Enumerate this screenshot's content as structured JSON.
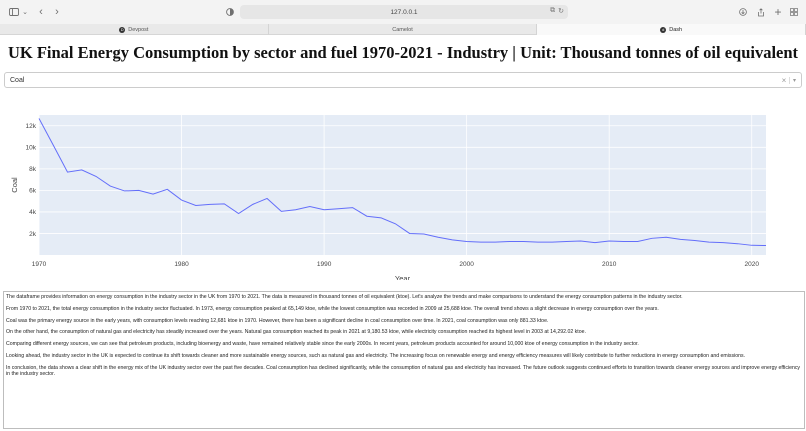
{
  "browser": {
    "url": "127.0.0.1",
    "tabs": [
      {
        "label": "Devpost",
        "active": false
      },
      {
        "label": "Camelot",
        "active": false
      },
      {
        "label": "Dash",
        "active": true
      }
    ]
  },
  "page": {
    "title": "UK Final Energy Consumption by sector and fuel 1970-2021 - Industry | Unit: Thousand tonnes of oil equivalent"
  },
  "dropdown": {
    "selected": "Coal",
    "clear_icon": "×",
    "arrow_icon": "▾"
  },
  "chart_data": {
    "type": "line",
    "xlabel": "Year",
    "ylabel": "Coal",
    "xlim": [
      1970,
      2021
    ],
    "ylim": [
      0,
      13000
    ],
    "x_ticks": [
      1970,
      1980,
      1990,
      2000,
      2010,
      2020
    ],
    "y_ticks": [
      2000,
      4000,
      6000,
      8000,
      10000,
      12000
    ],
    "y_tick_labels": [
      "2k",
      "4k",
      "6k",
      "8k",
      "10k",
      "12k"
    ],
    "grid": true,
    "line_color": "#636efa",
    "plot_bg": "#e5ecf6",
    "x": [
      1970,
      1971,
      1972,
      1973,
      1974,
      1975,
      1976,
      1977,
      1978,
      1979,
      1980,
      1981,
      1982,
      1983,
      1984,
      1985,
      1986,
      1987,
      1988,
      1989,
      1990,
      1991,
      1992,
      1993,
      1994,
      1995,
      1996,
      1997,
      1998,
      1999,
      2000,
      2001,
      2002,
      2003,
      2004,
      2005,
      2006,
      2007,
      2008,
      2009,
      2010,
      2011,
      2012,
      2013,
      2014,
      2015,
      2016,
      2017,
      2018,
      2019,
      2020,
      2021
    ],
    "series": [
      {
        "values": [
          12681,
          10200,
          7700,
          7900,
          7300,
          6400,
          5950,
          6000,
          5650,
          6100,
          5100,
          4600,
          4700,
          4750,
          3850,
          4700,
          5250,
          4050,
          4200,
          4500,
          4200,
          4300,
          4400,
          3600,
          3450,
          2900,
          2000,
          1950,
          1650,
          1400,
          1250,
          1200,
          1200,
          1250,
          1250,
          1200,
          1200,
          1250,
          1300,
          1150,
          1300,
          1250,
          1250,
          1550,
          1650,
          1450,
          1350,
          1200,
          1150,
          1050,
          900,
          881
        ]
      }
    ]
  },
  "summary": {
    "paragraphs": [
      "The dataframe provides information on energy consumption in the industry sector in the UK from 1970 to 2021. The data is measured in thousand tonnes of oil equivalent (ktoe). Let's analyze the trends and make comparisons to understand the energy consumption patterns in the industry sector.",
      "From 1970 to 2021, the total energy consumption in the industry sector fluctuated. In 1973, energy consumption peaked at 65,149 ktoe, while the lowest consumption was recorded in 2009 at 25,688 ktoe. The overall trend shows a slight decrease in energy consumption over the years.",
      "Coal was the primary energy source in the early years, with consumption levels reaching 12,681 ktoe in 1970. However, there has been a significant decline in coal consumption over time. In 2021, coal consumption was only 881.33 ktoe.",
      "On the other hand, the consumption of natural gas and electricity has steadily increased over the years. Natural gas consumption reached its peak in 2021 at 9,180.53 ktoe, while electricity consumption reached its highest level in 2003 at 14,292.02 ktoe.",
      "Comparing different energy sources, we can see that petroleum products, including bioenergy and waste, have remained relatively stable since the early 2000s. In recent years, petroleum products accounted for around 10,000 ktoe of energy consumption in the industry sector.",
      "Looking ahead, the industry sector in the UK is expected to continue its shift towards cleaner and more sustainable energy sources, such as natural gas and electricity. The increasing focus on renewable energy and energy efficiency measures will likely contribute to further reductions in energy consumption and emissions.",
      "In conclusion, the data shows a clear shift in the energy mix of the UK industry sector over the past five decades. Coal consumption has declined significantly, while the consumption of natural gas and electricity has increased. The future outlook suggests continued efforts to transition towards cleaner energy sources and improve energy efficiency in the industry sector."
    ]
  }
}
